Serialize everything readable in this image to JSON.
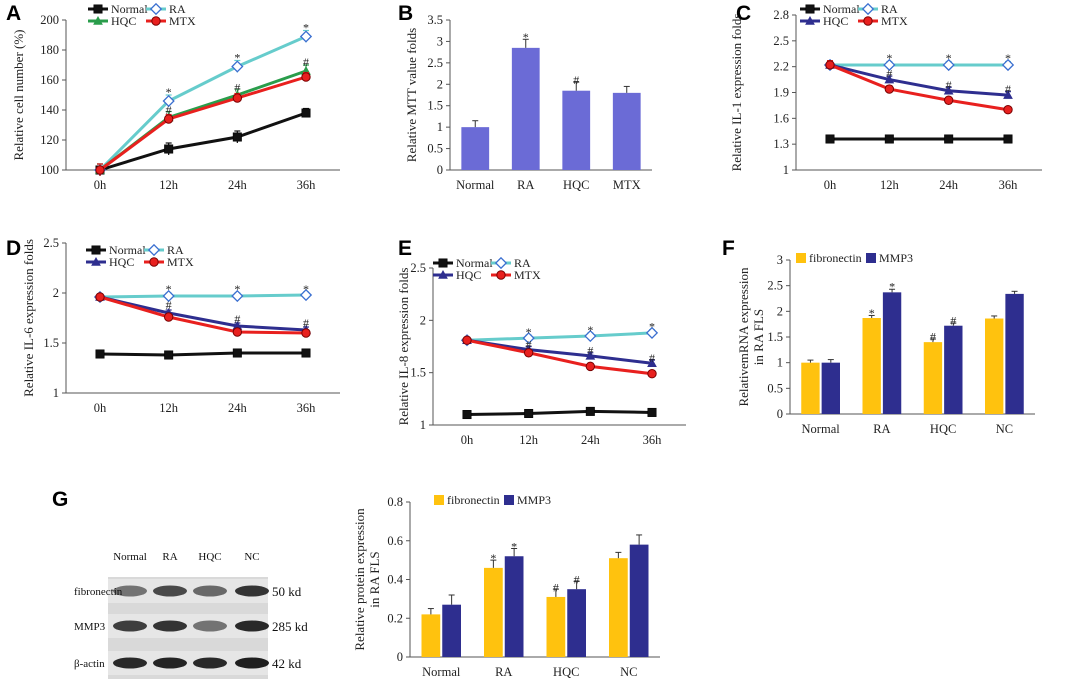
{
  "chart_data": [
    {
      "id": "A",
      "type": "line",
      "panel_label": "A",
      "ylabel": "Relative cell number (%)",
      "ylim": [
        100,
        200
      ],
      "yticks": [
        100,
        120,
        140,
        160,
        180,
        200
      ],
      "categories": [
        "0h",
        "12h",
        "24h",
        "36h"
      ],
      "series": [
        {
          "name": "Normal",
          "color": "#111111",
          "marker": "square",
          "values": [
            100,
            114,
            122,
            138
          ],
          "errors": [
            4,
            4,
            4,
            3
          ]
        },
        {
          "name": "RA",
          "color": "#66cccc",
          "marker": "diamond",
          "values": [
            100,
            146,
            169,
            189
          ],
          "errors": [
            4,
            4,
            4,
            4
          ]
        },
        {
          "name": "HQC",
          "color": "#2a9d4b",
          "marker": "triangle",
          "values": [
            100,
            135,
            150,
            166
          ],
          "errors": [
            4,
            4,
            4,
            4
          ]
        },
        {
          "name": "MTX",
          "color": "#e8201e",
          "marker": "circle",
          "values": [
            100,
            134,
            148,
            162
          ],
          "errors": [
            4,
            3,
            3,
            3
          ]
        }
      ],
      "annotations": [
        {
          "text": "*",
          "x": "12h",
          "y": 152
        },
        {
          "text": "*",
          "x": "24h",
          "y": 175
        },
        {
          "text": "*",
          "x": "36h",
          "y": 195
        },
        {
          "text": "#",
          "x": "12h",
          "y": 140
        },
        {
          "text": "#",
          "x": "24h",
          "y": 155
        },
        {
          "text": "#",
          "x": "36h",
          "y": 172
        }
      ]
    },
    {
      "id": "B",
      "type": "bar",
      "panel_label": "B",
      "ylabel": "Relative MTT value folds",
      "ylim": [
        0,
        3.5
      ],
      "yticks": [
        0,
        0.5,
        1,
        1.5,
        2,
        2.5,
        3,
        3.5
      ],
      "categories": [
        "Normal",
        "RA",
        "HQC",
        "MTX"
      ],
      "series": [
        {
          "name": "MTT",
          "color": "#6b6bd6",
          "values": [
            1.0,
            2.85,
            1.85,
            1.8
          ],
          "errors": [
            0.15,
            0.2,
            0.2,
            0.15
          ]
        }
      ],
      "annotations": [
        {
          "text": "*",
          "x": "RA",
          "y": 3.1
        },
        {
          "text": "#",
          "x": "HQC",
          "y": 2.1
        }
      ]
    },
    {
      "id": "C",
      "type": "line",
      "panel_label": "C",
      "ylabel": "Relative IL-1 expression folds",
      "ylim": [
        1,
        2.8
      ],
      "yticks": [
        1,
        1.3,
        1.6,
        1.9,
        2.2,
        2.5,
        2.8
      ],
      "categories": [
        "0h",
        "12h",
        "24h",
        "36h"
      ],
      "series": [
        {
          "name": "Normal",
          "color": "#111111",
          "marker": "square",
          "values": [
            1.36,
            1.36,
            1.36,
            1.36
          ],
          "errors": [
            0.04,
            0.04,
            0.04,
            0.04
          ]
        },
        {
          "name": "RA",
          "color": "#66cccc",
          "marker": "diamond",
          "values": [
            2.22,
            2.22,
            2.22,
            2.22
          ],
          "errors": [
            0.04,
            0.04,
            0.04,
            0.04
          ]
        },
        {
          "name": "HQC",
          "color": "#2e2e8f",
          "marker": "triangle",
          "values": [
            2.22,
            2.05,
            1.92,
            1.87
          ],
          "errors": [
            0.05,
            0.04,
            0.04,
            0.04
          ]
        },
        {
          "name": "MTX",
          "color": "#e8201e",
          "marker": "circle",
          "values": [
            2.22,
            1.94,
            1.81,
            1.7
          ],
          "errors": [
            0.05,
            0.04,
            0.03,
            0.03
          ]
        }
      ],
      "annotations": [
        {
          "text": "*",
          "x": "12h",
          "y": 2.3
        },
        {
          "text": "*",
          "x": "24h",
          "y": 2.3
        },
        {
          "text": "*",
          "x": "36h",
          "y": 2.3
        },
        {
          "text": "#",
          "x": "12h",
          "y": 2.12
        },
        {
          "text": "#",
          "x": "24h",
          "y": 1.99
        },
        {
          "text": "#",
          "x": "36h",
          "y": 1.94
        }
      ]
    },
    {
      "id": "D",
      "type": "line",
      "panel_label": "D",
      "ylabel": "Relative IL-6 expression folds",
      "ylim": [
        1,
        2.5
      ],
      "yticks": [
        1,
        1.5,
        2,
        2.5
      ],
      "categories": [
        "0h",
        "12h",
        "24h",
        "36h"
      ],
      "series": [
        {
          "name": "Normal",
          "color": "#111111",
          "marker": "square",
          "values": [
            1.39,
            1.38,
            1.4,
            1.4
          ],
          "errors": [
            0.03,
            0.03,
            0.03,
            0.03
          ]
        },
        {
          "name": "RA",
          "color": "#66cccc",
          "marker": "diamond",
          "values": [
            1.96,
            1.97,
            1.97,
            1.98
          ],
          "errors": [
            0.03,
            0.03,
            0.03,
            0.03
          ]
        },
        {
          "name": "HQC",
          "color": "#2e2e8f",
          "marker": "triangle",
          "values": [
            1.96,
            1.8,
            1.67,
            1.63
          ],
          "errors": [
            0.03,
            0.03,
            0.03,
            0.03
          ]
        },
        {
          "name": "MTX",
          "color": "#e8201e",
          "marker": "circle",
          "values": [
            1.96,
            1.76,
            1.61,
            1.6
          ],
          "errors": [
            0.03,
            0.03,
            0.03,
            0.03
          ]
        }
      ],
      "annotations": [
        {
          "text": "*",
          "x": "12h",
          "y": 2.04
        },
        {
          "text": "*",
          "x": "24h",
          "y": 2.04
        },
        {
          "text": "*",
          "x": "36h",
          "y": 2.04
        },
        {
          "text": "#",
          "x": "12h",
          "y": 1.88
        },
        {
          "text": "#",
          "x": "24h",
          "y": 1.74
        },
        {
          "text": "#",
          "x": "36h",
          "y": 1.7
        }
      ]
    },
    {
      "id": "E",
      "type": "line",
      "panel_label": "E",
      "ylabel": "Relative IL-8 expression folds",
      "ylim": [
        1,
        2.5
      ],
      "yticks": [
        1,
        1.5,
        2,
        2.5
      ],
      "categories": [
        "0h",
        "12h",
        "24h",
        "36h"
      ],
      "series": [
        {
          "name": "Normal",
          "color": "#111111",
          "marker": "square",
          "values": [
            1.1,
            1.11,
            1.13,
            1.12
          ],
          "errors": [
            0.03,
            0.03,
            0.03,
            0.03
          ]
        },
        {
          "name": "RA",
          "color": "#66cccc",
          "marker": "diamond",
          "values": [
            1.81,
            1.83,
            1.85,
            1.88
          ],
          "errors": [
            0.03,
            0.03,
            0.03,
            0.03
          ]
        },
        {
          "name": "HQC",
          "color": "#2e2e8f",
          "marker": "triangle",
          "values": [
            1.81,
            1.72,
            1.66,
            1.59
          ],
          "errors": [
            0.03,
            0.03,
            0.03,
            0.03
          ]
        },
        {
          "name": "MTX",
          "color": "#e8201e",
          "marker": "circle",
          "values": [
            1.81,
            1.69,
            1.56,
            1.49
          ],
          "errors": [
            0.03,
            0.03,
            0.03,
            0.03
          ]
        }
      ],
      "annotations": [
        {
          "text": "*",
          "x": "12h",
          "y": 1.89
        },
        {
          "text": "*",
          "x": "24h",
          "y": 1.91
        },
        {
          "text": "*",
          "x": "36h",
          "y": 1.94
        },
        {
          "text": "#",
          "x": "12h",
          "y": 1.77
        },
        {
          "text": "#",
          "x": "24h",
          "y": 1.71
        },
        {
          "text": "#",
          "x": "36h",
          "y": 1.64
        }
      ]
    },
    {
      "id": "F",
      "type": "bar",
      "panel_label": "F",
      "ylabel": "RelativemRNA expression\nin RA FLS",
      "ylim": [
        0,
        3
      ],
      "yticks": [
        0,
        0.5,
        1,
        1.5,
        2,
        2.5,
        3
      ],
      "categories": [
        "Normal",
        "RA",
        "HQC",
        "NC"
      ],
      "series": [
        {
          "name": "fibronectin",
          "color": "#ffc20e",
          "values": [
            1.0,
            1.87,
            1.4,
            1.86
          ],
          "errors": [
            0.05,
            0.05,
            0.06,
            0.05
          ]
        },
        {
          "name": "MMP3",
          "color": "#2e2e8f",
          "values": [
            1.0,
            2.37,
            1.72,
            2.34
          ],
          "errors": [
            0.06,
            0.06,
            0.05,
            0.05
          ]
        }
      ],
      "annotations": [
        {
          "text": "*",
          "x": "RA",
          "series": "fibronectin",
          "y": 1.97
        },
        {
          "text": "*",
          "x": "RA",
          "series": "MMP3",
          "y": 2.48
        },
        {
          "text": "#",
          "x": "HQC",
          "series": "fibronectin",
          "y": 1.51
        },
        {
          "text": "#",
          "x": "HQC",
          "series": "MMP3",
          "y": 1.82
        }
      ]
    },
    {
      "id": "G",
      "type": "bar",
      "panel_label": "",
      "ylabel": "Relative protein expression\nin RA FLS",
      "ylim": [
        0,
        0.8
      ],
      "yticks": [
        0,
        0.2,
        0.4,
        0.6,
        0.8
      ],
      "categories": [
        "Normal",
        "RA",
        "HQC",
        "NC"
      ],
      "series": [
        {
          "name": "fibronectin",
          "color": "#ffc20e",
          "values": [
            0.22,
            0.46,
            0.31,
            0.51
          ],
          "errors": [
            0.03,
            0.04,
            0.04,
            0.03
          ]
        },
        {
          "name": "MMP3",
          "color": "#2e2e8f",
          "values": [
            0.27,
            0.52,
            0.35,
            0.58
          ],
          "errors": [
            0.05,
            0.04,
            0.04,
            0.05
          ]
        }
      ],
      "annotations": [
        {
          "text": "*",
          "x": "RA",
          "series": "fibronectin",
          "y": 0.51
        },
        {
          "text": "*",
          "x": "RA",
          "series": "MMP3",
          "y": 0.57
        },
        {
          "text": "#",
          "x": "HQC",
          "series": "fibronectin",
          "y": 0.36
        },
        {
          "text": "#",
          "x": "HQC",
          "series": "MMP3",
          "y": 0.4
        }
      ]
    }
  ],
  "blot": {
    "panel_label": "G",
    "lanes": [
      "Normal",
      "RA",
      "HQC",
      "NC"
    ],
    "rows": [
      {
        "protein": "fibronectin",
        "size": "50 kd"
      },
      {
        "protein": "MMP3",
        "size": "285 kd"
      },
      {
        "protein": "β-actin",
        "size": "42 kd"
      }
    ]
  }
}
